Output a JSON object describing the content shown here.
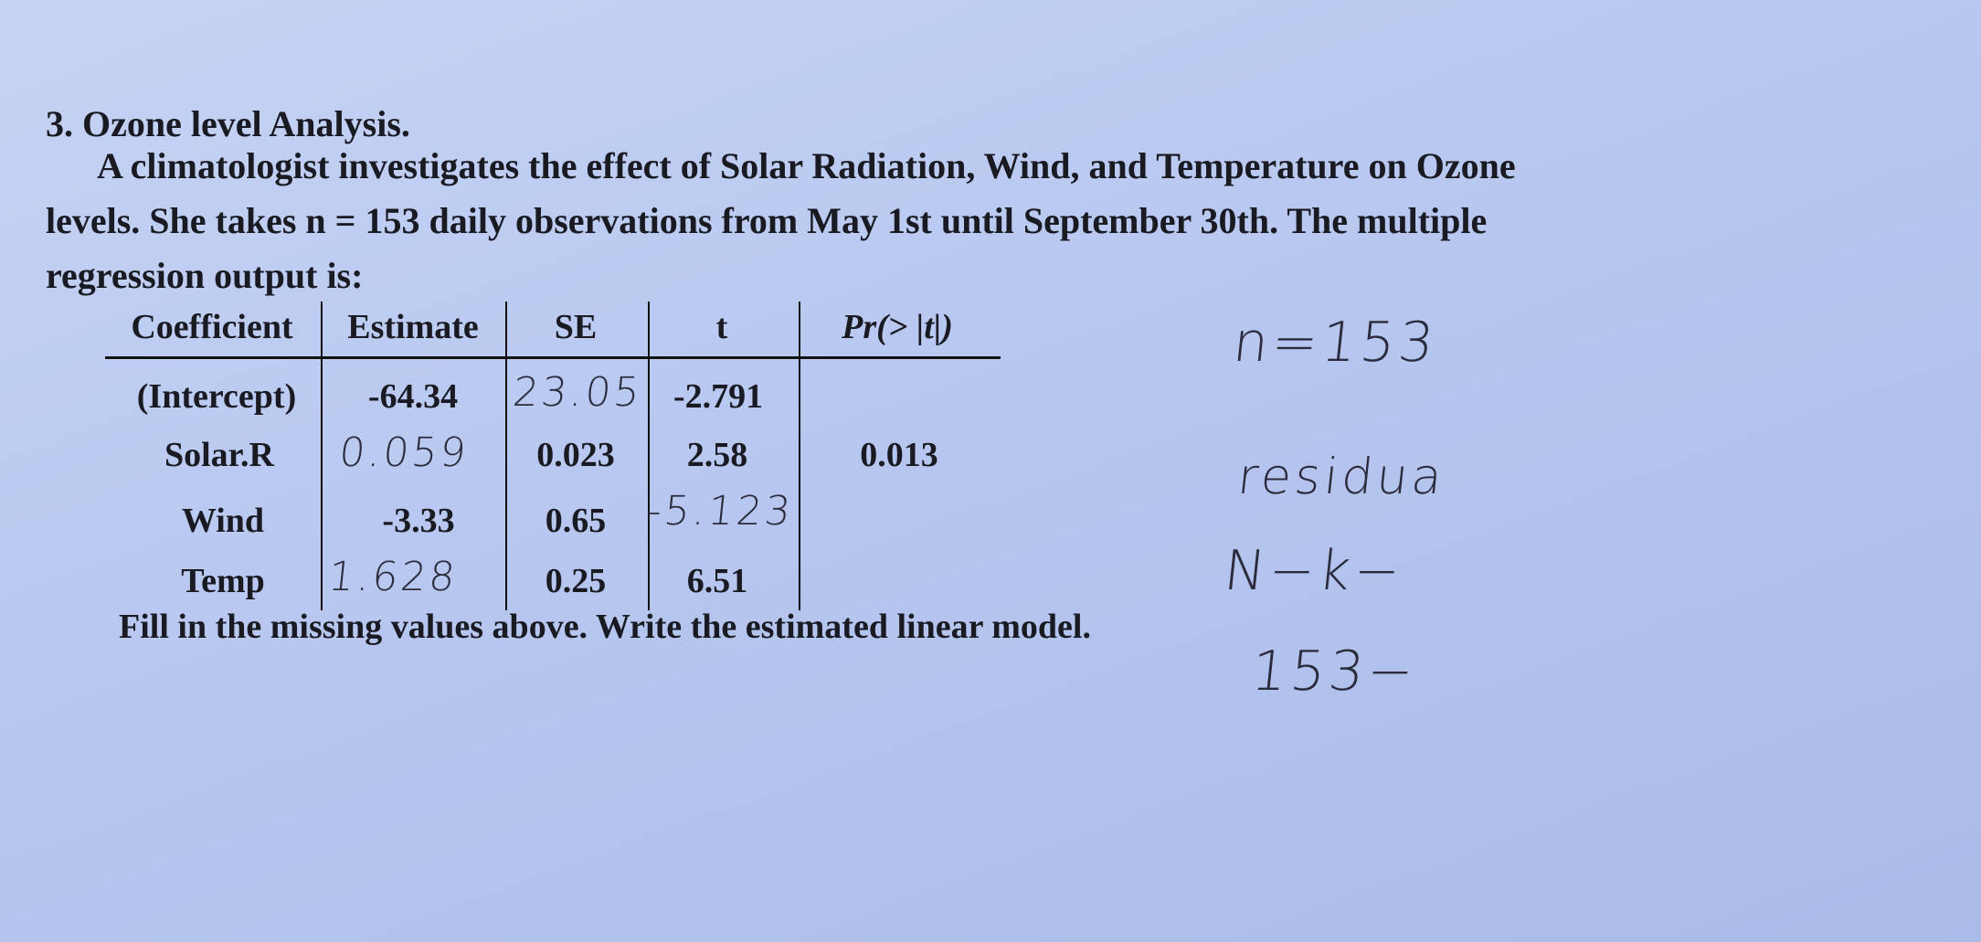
{
  "header": {
    "title": "3. Ozone level Analysis."
  },
  "paragraph": {
    "lines": [
      "A climatologist investigates the effect of Solar Radiation, Wind, and Temperature on Ozone",
      "levels. She takes n = 153 daily observations from May 1st until September 30th. The multiple",
      "regression output is:"
    ]
  },
  "table": {
    "header": [
      "Coefficient",
      "Estimate",
      "SE",
      "t",
      "Pr(> |t|)"
    ],
    "rows": [
      [
        "(Intercept)",
        "-64.34",
        "23.05",
        "-2.791"
      ],
      [
        "Solar.R",
        "0.059",
        "0.023",
        "2.58",
        "0.013"
      ],
      [
        "Wind",
        "-3.33",
        "0.65",
        "-5.123"
      ],
      [
        "Temp",
        "1.628",
        "0.25",
        "6.51"
      ]
    ]
  },
  "instruction": "Fill in the missing values above. Write the estimated linear model.",
  "notes": [
    "n=153",
    "residua",
    "N−k−",
    "153−"
  ]
}
